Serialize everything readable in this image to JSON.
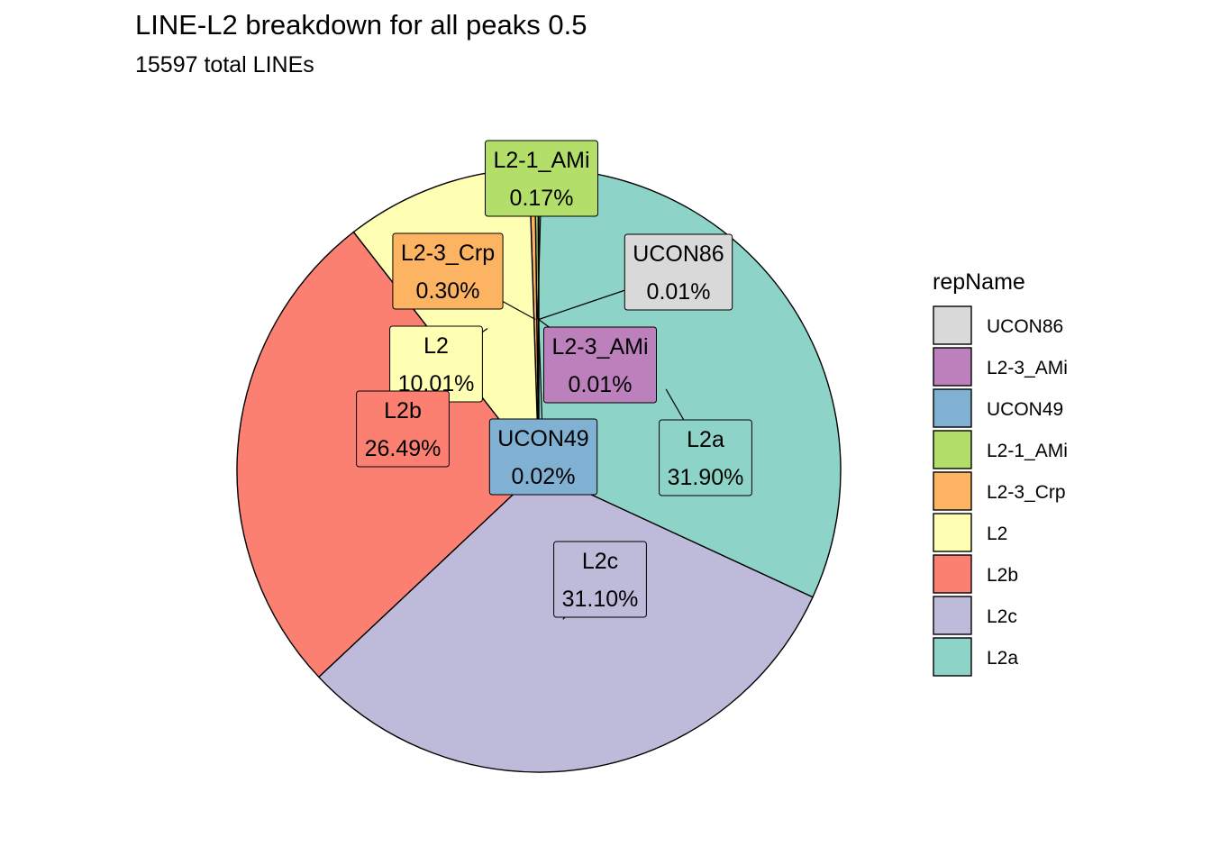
{
  "chart_data": {
    "type": "pie",
    "title": "LINE-L2 breakdown for all peaks 0.5",
    "subtitle": "15597  total LINEs",
    "legend_title": "repName",
    "legend_position": "right",
    "slices": [
      {
        "name": "UCON86",
        "percent": 0.01,
        "label": "0.01%",
        "color": "#d9d9d9"
      },
      {
        "name": "L2-3_AMi",
        "percent": 0.01,
        "label": "0.01%",
        "color": "#bc80bd"
      },
      {
        "name": "UCON49",
        "percent": 0.02,
        "label": "0.02%",
        "color": "#80b1d3"
      },
      {
        "name": "L2-1_AMi",
        "percent": 0.17,
        "label": "0.17%",
        "color": "#b3de69"
      },
      {
        "name": "L2-3_Crp",
        "percent": 0.3,
        "label": "0.30%",
        "color": "#fdb462"
      },
      {
        "name": "L2",
        "percent": 10.01,
        "label": "10.01%",
        "color": "#ffffb3"
      },
      {
        "name": "L2b",
        "percent": 26.49,
        "label": "26.49%",
        "color": "#fb8072"
      },
      {
        "name": "L2c",
        "percent": 31.1,
        "label": "31.10%",
        "color": "#bebada"
      },
      {
        "name": "L2a",
        "percent": 31.9,
        "label": "31.90%",
        "color": "#8dd3c7"
      }
    ]
  }
}
